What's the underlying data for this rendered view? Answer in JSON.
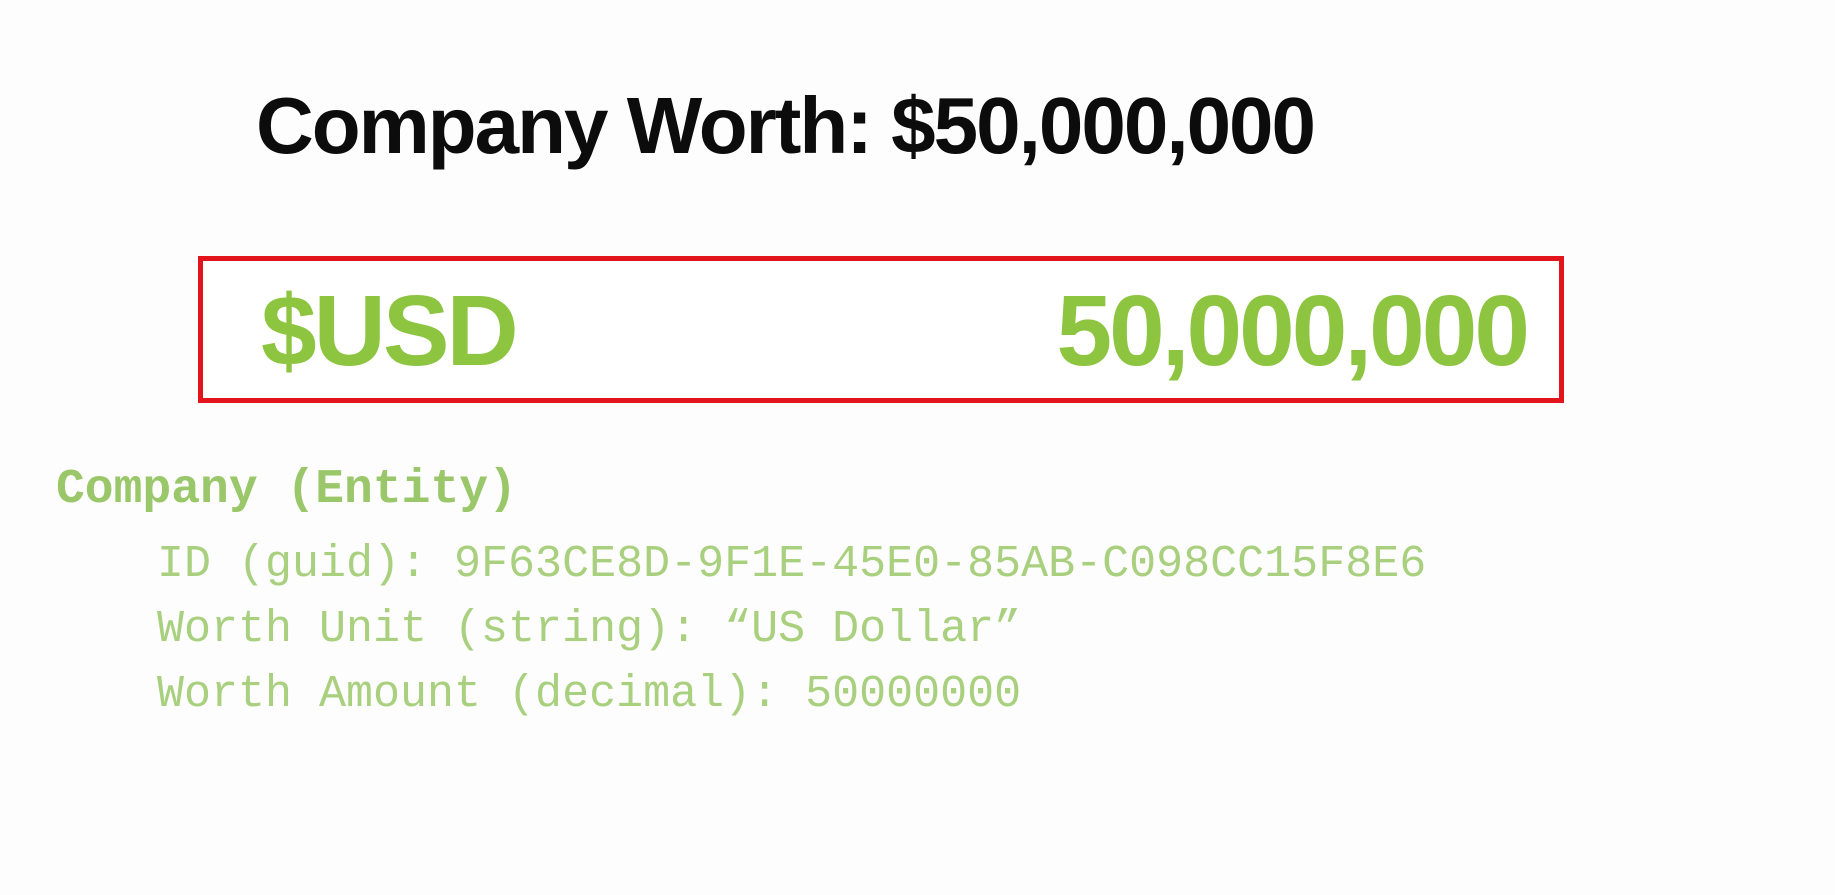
{
  "title": "Company Worth: $50,000,000",
  "worth_box": {
    "unit": "$USD",
    "amount": "50,000,000"
  },
  "entity": {
    "name": "Company (Entity)",
    "fields": [
      {
        "text": "ID (guid): 9F63CE8D-9F1E-45E0-85AB-C098CC15F8E6"
      },
      {
        "text": "Worth Unit (string): “US Dollar”"
      },
      {
        "text": "Worth Amount (decimal): 50000000"
      }
    ]
  },
  "colors": {
    "title": "#0c0c0c",
    "box_border": "#e2141c",
    "accent_green": "#8dc540",
    "entity_green": "#9ac76a"
  }
}
